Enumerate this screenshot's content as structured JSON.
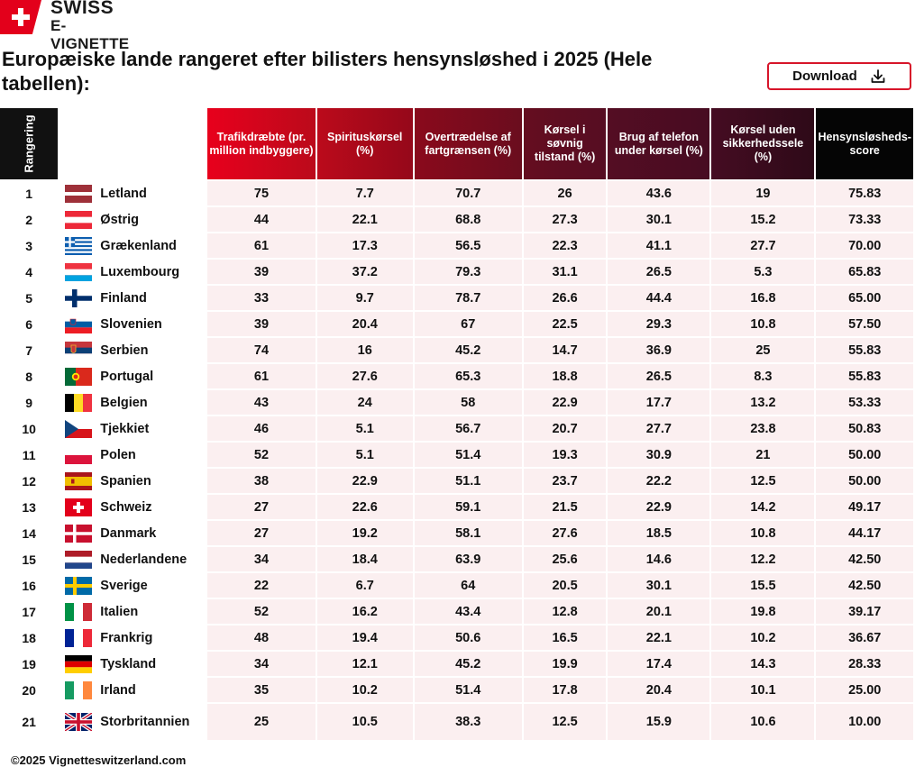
{
  "logo": {
    "line1": "SWISS",
    "line2": "E-VIGNETTE"
  },
  "title": "Europæiske lande rangeret efter bilisters hensynsløshed i 2025 (Hele tabellen):",
  "download_label": "Download",
  "colors": {
    "rank_header": "#111111",
    "land_header": "#e8001c",
    "header_gradient": [
      "#c9091b",
      "#a8051b",
      "#7d0a1a",
      "#5e0d1e",
      "#4a0d23",
      "#3a0b1d",
      "#050505"
    ],
    "value_cell_bg": "#fbeff0"
  },
  "table": {
    "headers": [
      "Rangering",
      "Land",
      "Trafikdræbte (pr. million indbyggere)",
      "Spirituskørsel (%)",
      "Overtrædelse af fartgrænsen (%)",
      "Kørsel i søvnig tilstand (%)",
      "Brug af telefon under kørsel (%)",
      "Kørsel uden sikkerhedssele (%)",
      "Hensynsløsheds-score"
    ],
    "rows": [
      {
        "rank": "1",
        "land": "Letland",
        "flag": "latvia",
        "values": [
          "75",
          "7.7",
          "70.7",
          "26",
          "43.6",
          "19",
          "75.83"
        ]
      },
      {
        "rank": "2",
        "land": "Østrig",
        "flag": "austria",
        "values": [
          "44",
          "22.1",
          "68.8",
          "27.3",
          "30.1",
          "15.2",
          "73.33"
        ]
      },
      {
        "rank": "3",
        "land": "Grækenland",
        "flag": "greece",
        "values": [
          "61",
          "17.3",
          "56.5",
          "22.3",
          "41.1",
          "27.7",
          "70.00"
        ]
      },
      {
        "rank": "4",
        "land": "Luxembourg",
        "flag": "luxembourg",
        "values": [
          "39",
          "37.2",
          "79.3",
          "31.1",
          "26.5",
          "5.3",
          "65.83"
        ]
      },
      {
        "rank": "5",
        "land": "Finland",
        "flag": "finland",
        "values": [
          "33",
          "9.7",
          "78.7",
          "26.6",
          "44.4",
          "16.8",
          "65.00"
        ]
      },
      {
        "rank": "6",
        "land": "Slovenien",
        "flag": "slovenia",
        "values": [
          "39",
          "20.4",
          "67",
          "22.5",
          "29.3",
          "10.8",
          "57.50"
        ]
      },
      {
        "rank": "7",
        "land": "Serbien",
        "flag": "serbia",
        "values": [
          "74",
          "16",
          "45.2",
          "14.7",
          "36.9",
          "25",
          "55.83"
        ]
      },
      {
        "rank": "8",
        "land": "Portugal",
        "flag": "portugal",
        "values": [
          "61",
          "27.6",
          "65.3",
          "18.8",
          "26.5",
          "8.3",
          "55.83"
        ]
      },
      {
        "rank": "9",
        "land": "Belgien",
        "flag": "belgium",
        "values": [
          "43",
          "24",
          "58",
          "22.9",
          "17.7",
          "13.2",
          "53.33"
        ]
      },
      {
        "rank": "10",
        "land": "Tjekkiet",
        "flag": "czechia",
        "values": [
          "46",
          "5.1",
          "56.7",
          "20.7",
          "27.7",
          "23.8",
          "50.83"
        ]
      },
      {
        "rank": "11",
        "land": "Polen",
        "flag": "poland",
        "values": [
          "52",
          "5.1",
          "51.4",
          "19.3",
          "30.9",
          "21",
          "50.00"
        ]
      },
      {
        "rank": "12",
        "land": "Spanien",
        "flag": "spain",
        "values": [
          "38",
          "22.9",
          "51.1",
          "23.7",
          "22.2",
          "12.5",
          "50.00"
        ]
      },
      {
        "rank": "13",
        "land": "Schweiz",
        "flag": "switzerland",
        "values": [
          "27",
          "22.6",
          "59.1",
          "21.5",
          "22.9",
          "14.2",
          "49.17"
        ]
      },
      {
        "rank": "14",
        "land": "Danmark",
        "flag": "denmark",
        "values": [
          "27",
          "19.2",
          "58.1",
          "27.6",
          "18.5",
          "10.8",
          "44.17"
        ]
      },
      {
        "rank": "15",
        "land": "Nederlandene",
        "flag": "netherlands",
        "values": [
          "34",
          "18.4",
          "63.9",
          "25.6",
          "14.6",
          "12.2",
          "42.50"
        ]
      },
      {
        "rank": "16",
        "land": "Sverige",
        "flag": "sweden",
        "values": [
          "22",
          "6.7",
          "64",
          "20.5",
          "30.1",
          "15.5",
          "42.50"
        ]
      },
      {
        "rank": "17",
        "land": "Italien",
        "flag": "italy",
        "values": [
          "52",
          "16.2",
          "43.4",
          "12.8",
          "20.1",
          "19.8",
          "39.17"
        ]
      },
      {
        "rank": "18",
        "land": "Frankrig",
        "flag": "france",
        "values": [
          "48",
          "19.4",
          "50.6",
          "16.5",
          "22.1",
          "10.2",
          "36.67"
        ]
      },
      {
        "rank": "19",
        "land": "Tyskland",
        "flag": "germany",
        "values": [
          "34",
          "12.1",
          "45.2",
          "19.9",
          "17.4",
          "14.3",
          "28.33"
        ]
      },
      {
        "rank": "20",
        "land": "Irland",
        "flag": "ireland",
        "values": [
          "35",
          "10.2",
          "51.4",
          "17.8",
          "20.4",
          "10.1",
          "25.00"
        ]
      },
      {
        "rank": "21",
        "land": "Storbritannien",
        "flag": "united-kingdom",
        "values": [
          "25",
          "10.5",
          "38.3",
          "12.5",
          "15.9",
          "10.6",
          "10.00"
        ]
      }
    ]
  },
  "footer": "©2025 Vignetteswitzerland.com"
}
